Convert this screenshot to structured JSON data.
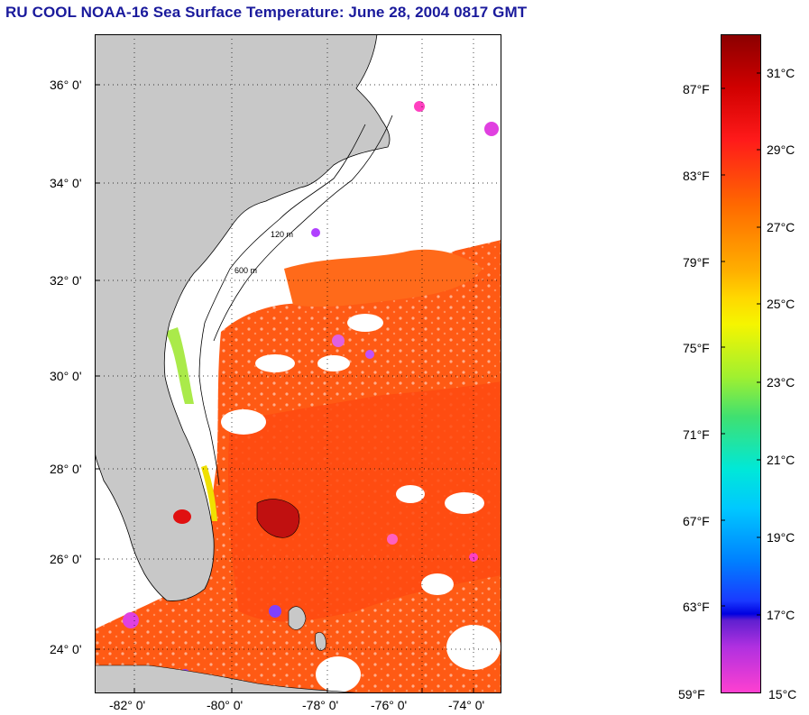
{
  "title": "RU COOL  NOAA-16  Sea Surface Temperature:  June 28, 2004 0817 GMT",
  "latitude_labels": [
    "36° 0'",
    "34° 0'",
    "32° 0'",
    "30° 0'",
    "28° 0'",
    "26° 0'",
    "24° 0'"
  ],
  "longitude_labels": [
    "-82° 0'",
    "-80° 0'",
    "-78° 0'",
    "-76° 0'",
    "-74° 0'"
  ],
  "depth_contour_labels": [
    "120 m",
    "600 m"
  ],
  "colorbar": {
    "fahrenheit_labels": [
      "87°F",
      "83°F",
      "79°F",
      "75°F",
      "71°F",
      "67°F",
      "63°F",
      "59°F"
    ],
    "celsius_labels": [
      "31°C",
      "29°C",
      "27°C",
      "25°C",
      "23°C",
      "21°C",
      "19°C",
      "17°C",
      "15°C"
    ],
    "range_celsius": [
      15,
      32.5
    ]
  },
  "colors": {
    "title": "#1a1a9c",
    "land": "#c8c8c8",
    "cloud_nodata": "#ffffff",
    "sst_dominant": "#ff5a14"
  }
}
